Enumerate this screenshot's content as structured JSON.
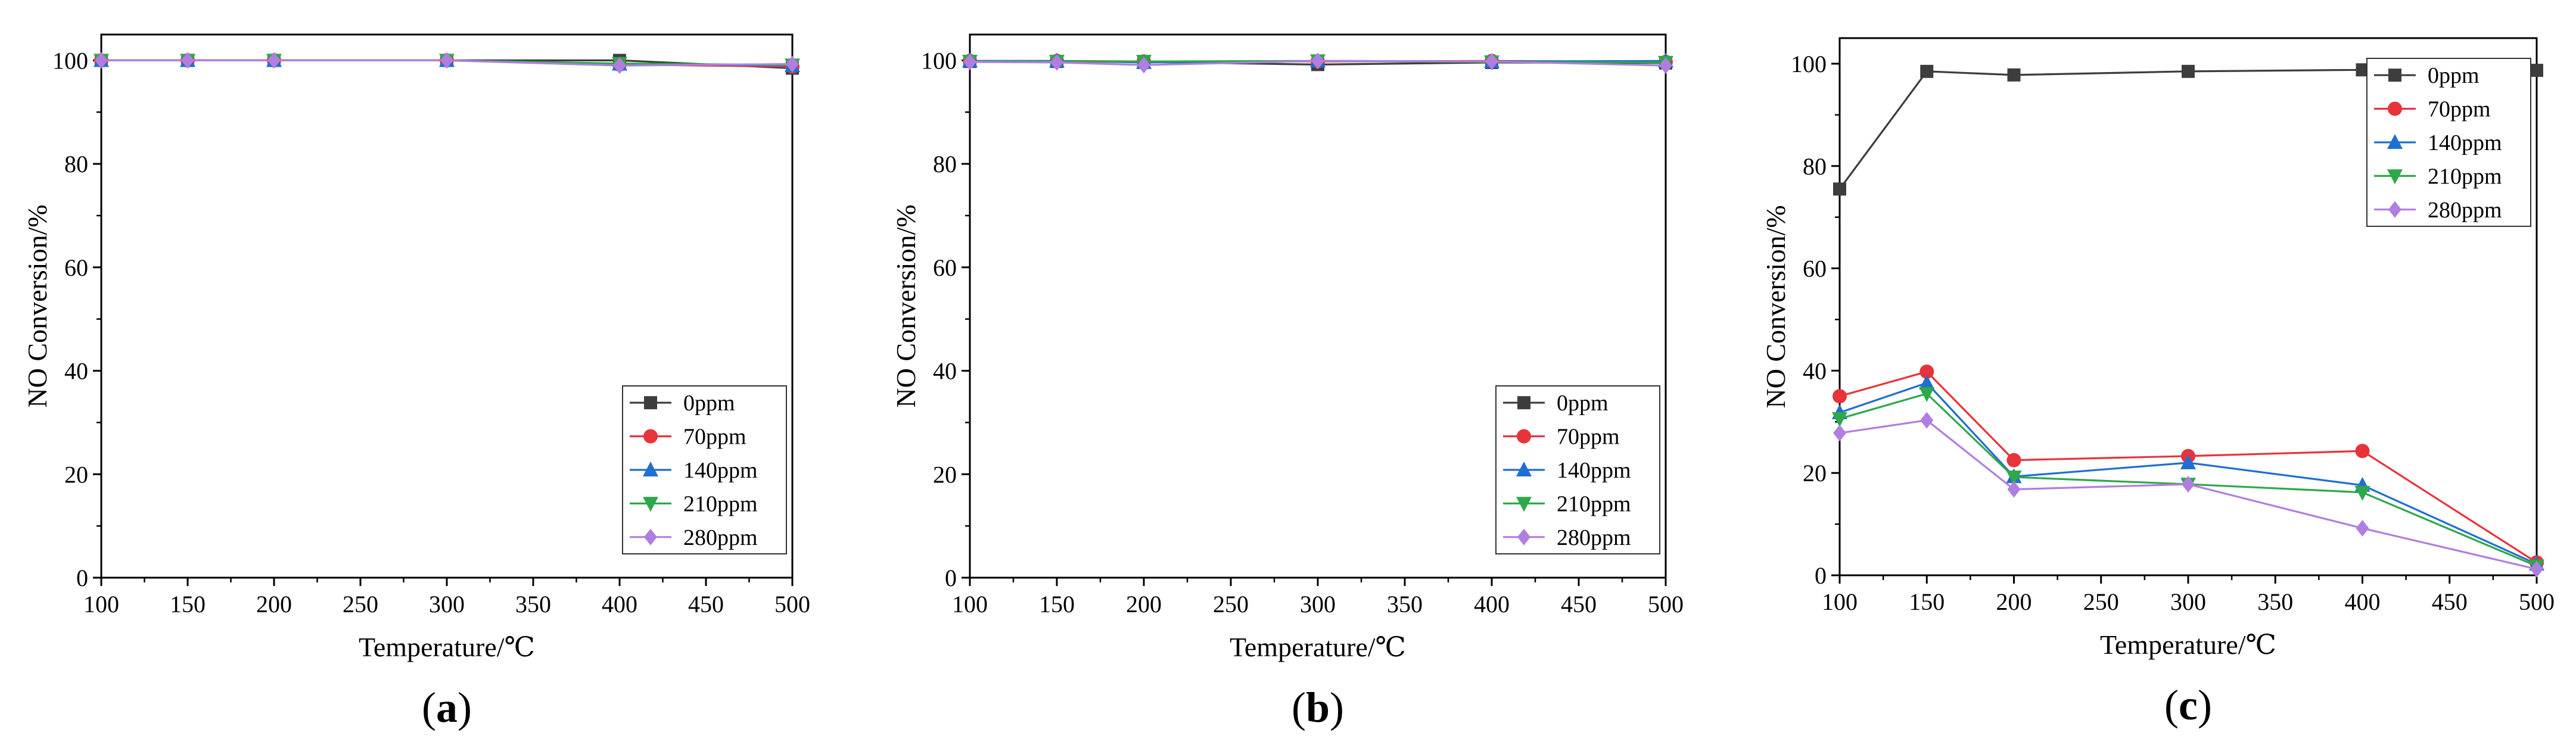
{
  "chart_data": [
    {
      "type": "line",
      "panel_label": "a",
      "xlabel": "Temperature/℃",
      "ylabel": "NO Conversion/%",
      "xlim": [
        100,
        500
      ],
      "ylim": [
        0,
        105
      ],
      "xticks": [
        100,
        150,
        200,
        250,
        300,
        350,
        400,
        450,
        500
      ],
      "yticks": [
        0,
        20,
        40,
        60,
        80,
        100
      ],
      "legend_position": "bottom-right",
      "x": [
        100,
        150,
        200,
        300,
        400,
        500
      ],
      "series": [
        {
          "name": "0ppm",
          "color": "#3d3d3d",
          "marker": "square",
          "values": [
            100,
            100,
            100,
            100,
            100,
            98.5
          ]
        },
        {
          "name": "70ppm",
          "color": "#e8333a",
          "marker": "circle",
          "values": [
            100,
            100,
            100,
            100,
            99.2,
            98.8
          ]
        },
        {
          "name": "140ppm",
          "color": "#1f6fd1",
          "marker": "triangle-up",
          "values": [
            100,
            100,
            100,
            100,
            99.3,
            99.0
          ]
        },
        {
          "name": "210ppm",
          "color": "#2ea84a",
          "marker": "triangle-down",
          "values": [
            100,
            100,
            100,
            100,
            99.4,
            99.1
          ]
        },
        {
          "name": "280ppm",
          "color": "#b07ee0",
          "marker": "diamond",
          "values": [
            100,
            100,
            100,
            100,
            99.0,
            99.3
          ]
        }
      ]
    },
    {
      "type": "line",
      "panel_label": "b",
      "xlabel": "Temperature/℃",
      "ylabel": "NO Conversion/%",
      "xlim": [
        100,
        500
      ],
      "ylim": [
        0,
        105
      ],
      "xticks": [
        100,
        150,
        200,
        250,
        300,
        350,
        400,
        450,
        500
      ],
      "yticks": [
        0,
        20,
        40,
        60,
        80,
        100
      ],
      "legend_position": "bottom-right",
      "x": [
        100,
        150,
        200,
        300,
        400,
        500
      ],
      "series": [
        {
          "name": "0ppm",
          "color": "#3d3d3d",
          "marker": "square",
          "values": [
            99.8,
            99.8,
            99.7,
            99.2,
            99.6,
            99.5
          ]
        },
        {
          "name": "70ppm",
          "color": "#e8333a",
          "marker": "circle",
          "values": [
            99.9,
            99.9,
            99.8,
            99.8,
            99.9,
            99.7
          ]
        },
        {
          "name": "140ppm",
          "color": "#1f6fd1",
          "marker": "triangle-up",
          "values": [
            99.9,
            99.9,
            99.6,
            99.9,
            99.8,
            99.9
          ]
        },
        {
          "name": "210ppm",
          "color": "#2ea84a",
          "marker": "triangle-down",
          "values": [
            99.8,
            99.8,
            99.8,
            99.9,
            99.7,
            99.6
          ]
        },
        {
          "name": "280ppm",
          "color": "#b07ee0",
          "marker": "diamond",
          "values": [
            99.7,
            99.6,
            99.1,
            99.9,
            99.8,
            99.0
          ]
        }
      ]
    },
    {
      "type": "line",
      "panel_label": "c",
      "xlabel": "Temperature/℃",
      "ylabel": "NO Conversion/%",
      "xlim": [
        100,
        500
      ],
      "ylim": [
        0,
        105
      ],
      "xticks": [
        100,
        150,
        200,
        250,
        300,
        350,
        400,
        450,
        500
      ],
      "yticks": [
        0,
        20,
        40,
        60,
        80,
        100
      ],
      "legend_position": "top-right",
      "x": [
        100,
        150,
        200,
        300,
        400,
        500
      ],
      "series": [
        {
          "name": "0ppm",
          "color": "#3d3d3d",
          "marker": "square",
          "values": [
            75.5,
            98.5,
            97.8,
            98.5,
            98.8,
            98.7
          ]
        },
        {
          "name": "70ppm",
          "color": "#e8333a",
          "marker": "circle",
          "values": [
            35,
            39.8,
            22.5,
            23.3,
            24.3,
            2.5
          ]
        },
        {
          "name": "140ppm",
          "color": "#1f6fd1",
          "marker": "triangle-up",
          "values": [
            31.8,
            37.6,
            19.3,
            22,
            17.6,
            2.2
          ]
        },
        {
          "name": "210ppm",
          "color": "#2ea84a",
          "marker": "triangle-down",
          "values": [
            30.6,
            35.5,
            19.2,
            17.8,
            16.2,
            1.8
          ]
        },
        {
          "name": "280ppm",
          "color": "#b07ee0",
          "marker": "diamond",
          "values": [
            27.8,
            30.3,
            16.8,
            17.8,
            9.2,
            1.2
          ]
        }
      ]
    }
  ]
}
